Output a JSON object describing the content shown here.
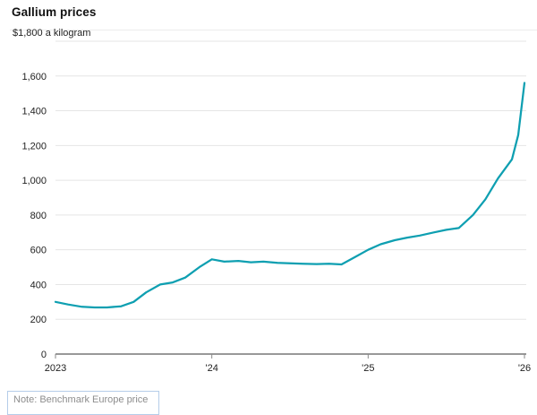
{
  "title": "Gallium prices",
  "note": "Note: Benchmark Europe price",
  "colors": {
    "line": "#0e9fb1",
    "grid": "#e5e5e5",
    "axis": "#5a5a5a",
    "tick": "#8a8a8a",
    "label_text": "#222222",
    "unit_text": "#222222"
  },
  "chart_data": {
    "type": "line",
    "title": "Gallium prices",
    "unit_label": "$1,800 a kilogram",
    "ylabel": "",
    "xlabel": "",
    "ylim": [
      0,
      1800
    ],
    "yticks": [
      {
        "v": 0,
        "label": "0"
      },
      {
        "v": 200,
        "label": "200"
      },
      {
        "v": 400,
        "label": "400"
      },
      {
        "v": 600,
        "label": "600"
      },
      {
        "v": 800,
        "label": "800"
      },
      {
        "v": 1000,
        "label": "1,000"
      },
      {
        "v": 1200,
        "label": "1,200"
      },
      {
        "v": 1400,
        "label": "1,400"
      },
      {
        "v": 1600,
        "label": "1,600"
      },
      {
        "v": 1800,
        "label": ""
      }
    ],
    "xlim": [
      2023,
      2026
    ],
    "xticks": [
      {
        "v": 2023,
        "label": "2023"
      },
      {
        "v": 2024,
        "label": "'24"
      },
      {
        "v": 2025,
        "label": "'25"
      },
      {
        "v": 2026,
        "label": "'26"
      }
    ],
    "x": [
      2023.0,
      2023.08,
      2023.17,
      2023.25,
      2023.33,
      2023.42,
      2023.5,
      2023.58,
      2023.67,
      2023.75,
      2023.83,
      2023.92,
      2024.0,
      2024.08,
      2024.17,
      2024.25,
      2024.33,
      2024.42,
      2024.5,
      2024.58,
      2024.67,
      2024.75,
      2024.83,
      2024.92,
      2025.0,
      2025.08,
      2025.17,
      2025.25,
      2025.33,
      2025.42,
      2025.5,
      2025.58,
      2025.67,
      2025.75,
      2025.83,
      2025.92,
      2025.96,
      2026.0
    ],
    "values": [
      300,
      285,
      272,
      268,
      268,
      275,
      300,
      355,
      400,
      412,
      440,
      500,
      545,
      532,
      536,
      528,
      532,
      525,
      522,
      520,
      518,
      520,
      516,
      560,
      600,
      632,
      655,
      670,
      682,
      700,
      715,
      725,
      800,
      890,
      1010,
      1120,
      1260,
      1560
    ],
    "grid": true,
    "legend": "none"
  }
}
